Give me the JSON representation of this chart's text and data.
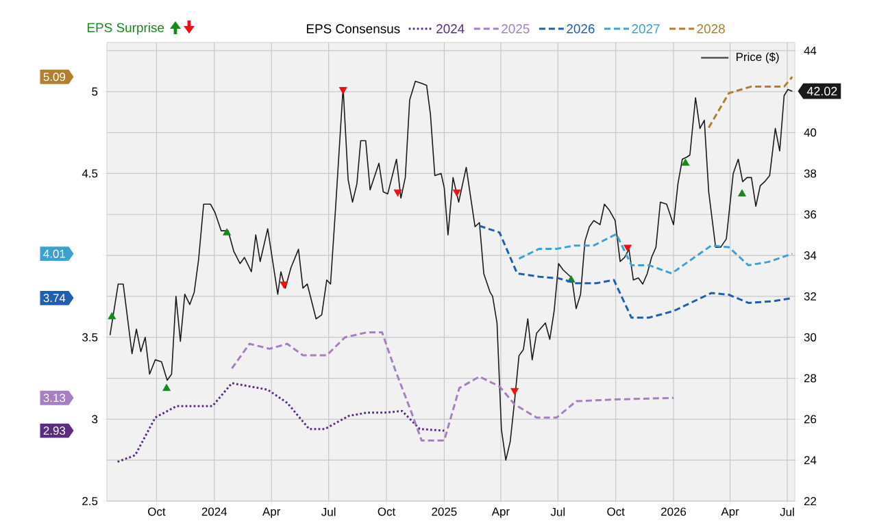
{
  "chart_data": {
    "type": "line",
    "legend_title": "EPS Consensus",
    "xlim": [
      "2023-07-14",
      "2026-07-13"
    ],
    "xticks": [
      {
        "value": "2023-10-01",
        "label": "Oct"
      },
      {
        "value": "2024-01-01",
        "label": "2024"
      },
      {
        "value": "2024-04-01",
        "label": "Apr"
      },
      {
        "value": "2024-07-01",
        "label": "Jul"
      },
      {
        "value": "2024-10-01",
        "label": "Oct"
      },
      {
        "value": "2025-01-01",
        "label": "2025"
      },
      {
        "value": "2025-04-01",
        "label": "Apr"
      },
      {
        "value": "2025-07-01",
        "label": "Jul"
      },
      {
        "value": "2025-10-01",
        "label": "Oct"
      },
      {
        "value": "2026-01-01",
        "label": "2026"
      },
      {
        "value": "2026-04-01",
        "label": "Apr"
      },
      {
        "value": "2026-07-01",
        "label": "Jul"
      }
    ],
    "ylim": [
      2.5,
      5.3
    ],
    "yticks": [
      2.5,
      3,
      3.5,
      {
        "value": 4,
        "label": null
      },
      4.5,
      5
    ],
    "y3lim": [
      2.5,
      5.3
    ],
    "y3ticks": [
      2.93,
      3.13,
      3.74,
      4.01,
      5.09
    ],
    "y2lim": [
      22,
      44.4
    ],
    "y2ticks": [
      22,
      24,
      26,
      28,
      30,
      32,
      34,
      36,
      38,
      40,
      {
        "value": 42,
        "label": null
      },
      44
    ],
    "grid": true,
    "legend": "top",
    "series": [
      {
        "name": "Price ($)",
        "axis": "y2",
        "color": "#1a1a1a",
        "marker": "none",
        "line_style": "solid",
        "x": [
          "2023-07-19",
          "2023-08-01",
          "2023-08-09",
          "2023-08-23",
          "2023-08-30",
          "2023-09-06",
          "2023-09-13",
          "2023-09-20",
          "2023-09-29",
          "2023-10-09",
          "2023-10-18",
          "2023-10-25",
          "2023-11-01",
          "2023-11-08",
          "2023-11-15",
          "2023-11-23",
          "2023-11-30",
          "2023-12-07",
          "2023-12-15",
          "2023-12-26",
          "2024-01-02",
          "2024-01-12",
          "2024-01-23",
          "2024-02-01",
          "2024-02-11",
          "2024-02-18",
          "2024-02-29",
          "2024-03-07",
          "2024-03-14",
          "2024-03-26",
          "2024-04-11",
          "2024-04-16",
          "2024-04-23",
          "2024-05-02",
          "2024-05-14",
          "2024-05-21",
          "2024-05-28",
          "2024-06-11",
          "2024-06-20",
          "2024-06-28",
          "2024-07-04",
          "2024-07-12",
          "2024-07-24",
          "2024-08-01",
          "2024-08-08",
          "2024-08-15",
          "2024-08-21",
          "2024-08-29",
          "2024-09-05",
          "2024-09-19",
          "2024-09-26",
          "2024-10-03",
          "2024-10-17",
          "2024-10-24",
          "2024-10-31",
          "2024-11-07",
          "2024-11-16",
          "2024-11-26",
          "2024-12-04",
          "2024-12-10",
          "2024-12-17",
          "2024-12-27",
          "2025-01-01",
          "2025-01-07",
          "2025-01-15",
          "2025-01-24",
          "2025-02-05",
          "2025-02-19",
          "2025-02-26",
          "2025-03-05",
          "2025-03-15",
          "2025-03-19",
          "2025-03-26",
          "2025-04-02",
          "2025-04-09",
          "2025-04-16",
          "2025-04-23",
          "2025-04-30",
          "2025-05-07",
          "2025-05-14",
          "2025-05-21",
          "2025-05-28",
          "2025-06-11",
          "2025-06-18",
          "2025-06-25",
          "2025-07-02",
          "2025-07-09",
          "2025-07-16",
          "2025-07-23",
          "2025-07-30",
          "2025-08-06",
          "2025-08-13",
          "2025-08-20",
          "2025-08-27",
          "2025-09-06",
          "2025-09-13",
          "2025-09-21",
          "2025-09-30",
          "2025-10-08",
          "2025-10-15",
          "2025-10-22",
          "2025-10-29",
          "2025-11-06",
          "2025-11-13",
          "2025-11-20",
          "2025-11-27",
          "2025-12-04",
          "2025-12-11",
          "2025-12-21",
          "2026-01-01",
          "2026-01-08",
          "2026-01-15",
          "2026-01-22",
          "2026-01-27",
          "2026-02-05",
          "2026-02-12",
          "2026-02-19",
          "2026-02-26",
          "2026-03-09",
          "2026-03-17",
          "2026-03-26",
          "2026-04-06",
          "2026-04-14",
          "2026-04-21",
          "2026-04-28",
          "2026-05-05",
          "2026-05-12",
          "2026-05-19",
          "2026-05-26",
          "2026-06-03",
          "2026-06-12",
          "2026-06-19",
          "2026-06-26",
          "2026-07-02",
          "2026-07-09"
        ],
        "values": [
          30.1,
          32.6,
          32.6,
          29.2,
          30.4,
          29.3,
          30.0,
          28.2,
          28.9,
          28.8,
          27.9,
          28.2,
          32.0,
          29.8,
          32.1,
          31.6,
          32.2,
          33.8,
          36.5,
          36.5,
          36.1,
          35.2,
          35.2,
          34.2,
          33.6,
          33.9,
          33.2,
          35.0,
          33.7,
          35.3,
          32.1,
          33.2,
          32.4,
          33.4,
          34.3,
          32.4,
          32.6,
          30.9,
          31.1,
          32.8,
          32.6,
          36.3,
          42.2,
          37.7,
          36.6,
          37.5,
          39.6,
          39.6,
          37.2,
          38.5,
          37.1,
          37.0,
          38.7,
          36.8,
          37.8,
          41.6,
          42.5,
          42.4,
          42.3,
          40.9,
          37.9,
          38.0,
          37.3,
          35.0,
          37.8,
          36.6,
          38.3,
          35.4,
          35.6,
          33.1,
          32.2,
          32.0,
          30.7,
          25.5,
          24.0,
          24.9,
          26.9,
          29.1,
          29.4,
          30.9,
          28.9,
          30.2,
          30.7,
          29.9,
          31.3,
          33.6,
          33.3,
          33.1,
          32.9,
          31.4,
          32.1,
          34.7,
          35.4,
          35.7,
          35.5,
          36.5,
          36.2,
          35.7,
          33.7,
          33.9,
          34.3,
          32.8,
          32.9,
          32.6,
          33.1,
          33.9,
          34.4,
          36.6,
          36.5,
          35.5,
          37.5,
          38.7,
          38.8,
          38.9,
          41.7,
          40.2,
          40.6,
          37.1,
          34.4,
          34.4,
          34.8,
          38.0,
          38.7,
          37.6,
          37.8,
          37.8,
          36.4,
          37.4,
          37.6,
          37.9,
          40.2,
          39.1,
          41.8,
          42.1,
          42.02
        ],
        "value_labels": [
          null,
          null,
          null,
          null,
          null,
          null,
          null,
          null,
          null,
          null,
          null,
          null,
          null,
          null,
          null,
          null,
          null,
          null,
          null,
          null,
          null,
          null,
          null,
          null,
          null,
          null,
          null,
          null,
          null,
          null,
          null,
          null,
          null,
          null,
          null,
          null,
          null,
          null,
          null,
          null,
          null,
          null,
          null,
          null,
          null,
          null,
          null,
          null,
          null,
          null,
          null,
          null,
          null,
          null,
          null,
          null,
          null,
          null,
          null,
          null,
          null,
          null,
          null,
          null,
          null,
          null,
          null,
          null,
          null,
          null,
          null,
          null,
          null,
          null,
          null,
          null,
          null,
          null,
          null,
          null,
          null,
          null,
          null,
          null,
          null,
          null,
          null,
          null,
          null,
          null,
          null,
          null,
          null,
          null,
          null,
          null,
          null,
          null,
          null,
          null,
          null,
          null,
          null,
          null,
          null,
          null,
          null,
          null,
          null,
          null,
          null,
          null,
          null,
          null,
          null,
          null,
          null,
          null,
          null,
          null,
          null,
          null,
          null,
          null,
          null,
          null,
          null,
          null,
          null,
          null,
          null,
          null,
          null,
          null,
          "42.02"
        ]
      },
      {
        "name": "2024",
        "color": "#5b2d82",
        "marker": "none",
        "line_style": "dotted",
        "x": [
          "2023-07-31",
          "2023-08-28",
          "2023-09-29",
          "2023-11-02",
          "2023-12-29",
          "2024-01-29",
          "2024-03-26",
          "2024-04-26",
          "2024-05-31",
          "2024-06-25",
          "2024-08-02",
          "2024-08-31",
          "2024-09-28",
          "2024-10-26",
          "2024-11-23",
          "2025-01-01"
        ],
        "values": [
          2.74,
          2.78,
          3.01,
          3.08,
          3.08,
          3.22,
          3.18,
          3.1,
          2.94,
          2.94,
          3.02,
          3.04,
          3.04,
          3.05,
          2.94,
          2.93
        ]
      },
      {
        "name": "2025",
        "color": "#a57fc0",
        "marker": "none",
        "line_style": "dashed",
        "x": [
          "2024-01-29",
          "2024-02-26",
          "2024-03-29",
          "2024-04-26",
          "2024-05-21",
          "2024-06-28",
          "2024-07-27",
          "2024-08-31",
          "2024-09-24",
          "2024-10-15",
          "2024-11-09",
          "2024-11-26",
          "2025-01-01",
          "2025-01-25",
          "2025-02-26",
          "2025-03-30",
          "2025-04-23",
          "2025-05-28",
          "2025-06-29",
          "2025-07-30",
          "2025-09-28",
          "2026-01-01"
        ],
        "values": [
          3.31,
          3.46,
          3.43,
          3.46,
          3.39,
          3.39,
          3.5,
          3.53,
          3.53,
          3.3,
          3.05,
          2.87,
          2.87,
          3.19,
          3.26,
          3.2,
          3.09,
          3.01,
          3.01,
          3.11,
          3.12,
          3.13
        ]
      },
      {
        "name": "2026",
        "color": "#1f5fae",
        "marker": "none",
        "line_style": "dashed",
        "x": [
          "2025-02-26",
          "2025-03-30",
          "2025-04-27",
          "2025-06-01",
          "2025-07-02",
          "2025-07-30",
          "2025-08-31",
          "2025-09-28",
          "2025-10-26",
          "2025-11-23",
          "2026-01-01",
          "2026-03-02",
          "2026-03-30",
          "2026-04-30",
          "2026-06-08",
          "2026-07-09"
        ],
        "values": [
          4.18,
          4.14,
          3.89,
          3.87,
          3.86,
          3.83,
          3.83,
          3.85,
          3.62,
          3.62,
          3.66,
          3.77,
          3.76,
          3.71,
          3.72,
          3.74
        ]
      },
      {
        "name": "2027",
        "color": "#3ea0d0",
        "marker": "none",
        "line_style": "dashed",
        "x": [
          "2025-04-30",
          "2025-06-01",
          "2025-06-29",
          "2025-07-27",
          "2025-08-27",
          "2025-10-02",
          "2025-10-26",
          "2025-11-23",
          "2025-12-29",
          "2026-03-02",
          "2026-03-30",
          "2026-04-30",
          "2026-06-01",
          "2026-07-09"
        ],
        "values": [
          3.98,
          4.04,
          4.04,
          4.06,
          4.06,
          4.13,
          3.94,
          3.94,
          3.89,
          4.06,
          4.05,
          3.94,
          3.96,
          4.01
        ]
      },
      {
        "name": "2028",
        "color": "#b27e2f",
        "marker": "none",
        "line_style": "dashed",
        "x": [
          "2026-02-26",
          "2026-03-30",
          "2026-05-04",
          "2026-06-26",
          "2026-07-09"
        ],
        "values": [
          4.78,
          4.99,
          5.03,
          5.03,
          5.09
        ]
      },
      {
        "name": "EPS Surprise",
        "type": "scatter",
        "axis": "y2",
        "color": "#138a1a",
        "marker": "triangle",
        "x": [
          "2023-07-22",
          "2023-10-17",
          "2024-01-21",
          "2025-07-22",
          "2026-01-20",
          "2026-04-20"
        ],
        "values": [
          31.0,
          27.5,
          35.1,
          32.8,
          38.5,
          37.0
        ]
      },
      {
        "type": "scatter",
        "axis": "y2",
        "color": "#ee1111",
        "marker": "triangle-down",
        "x": [
          "2024-04-21",
          "2024-07-24",
          "2024-10-19",
          "2025-01-21",
          "2025-04-23",
          "2025-10-20"
        ],
        "values": [
          32.6,
          42.1,
          37.1,
          37.1,
          27.4,
          34.4
        ]
      }
    ]
  }
}
